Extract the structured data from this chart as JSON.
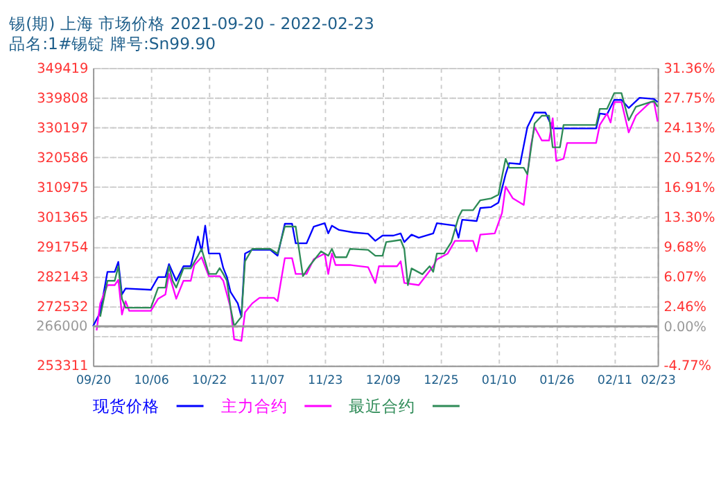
{
  "chart_data": {
    "type": "line",
    "title": "锡(期) 上海 市场价格 2021-09-20 - 2022-02-23",
    "subtitle": "品名:1#锡锭 牌号:Sn99.90",
    "xlim": [
      "2021-09-20",
      "2022-02-23"
    ],
    "xticks": [
      {
        "value": "2021-09-20",
        "label": "09/20"
      },
      {
        "value": "2021-10-06",
        "label": "10/06"
      },
      {
        "value": "2021-10-22",
        "label": "10/22"
      },
      {
        "value": "2021-11-07",
        "label": "11/07"
      },
      {
        "value": "2021-11-23",
        "label": "11/23"
      },
      {
        "value": "2021-12-09",
        "label": "12/09"
      },
      {
        "value": "2021-12-25",
        "label": "12/25"
      },
      {
        "value": "2022-01-10",
        "label": "01/10"
      },
      {
        "value": "2022-01-26",
        "label": "01/26"
      },
      {
        "value": "2022-02-11",
        "label": "02/11"
      },
      {
        "value": "2022-02-23",
        "label": "02/23"
      }
    ],
    "ylim": [
      253311,
      349419
    ],
    "yticks": [
      253311,
      {
        "value": 262922,
        "label": null
      },
      272532,
      282143,
      291754,
      301365,
      310975,
      320586,
      330197,
      339808,
      349419
    ],
    "y2lim": [
      -4.77,
      31.36
    ],
    "y2ticks": [
      {
        "value": -4.77,
        "label": "-4.77%"
      },
      {
        "value": -1.15,
        "label": null
      },
      {
        "value": 0,
        "label": "0.00%"
      },
      {
        "value": 2.46,
        "label": "2.46%"
      },
      {
        "value": 6.07,
        "label": "6.07%"
      },
      {
        "value": 9.68,
        "label": "9.68%"
      },
      {
        "value": 13.3,
        "label": "13.30%"
      },
      {
        "value": 16.91,
        "label": "16.91%"
      },
      {
        "value": 20.52,
        "label": "20.52%"
      },
      {
        "value": 24.13,
        "label": "24.13%"
      },
      {
        "value": 27.75,
        "label": "27.75%"
      },
      {
        "value": 31.36,
        "label": "31.36%"
      }
    ],
    "ref_lines": [
      {
        "axis": "y",
        "value": 266000,
        "label": "266000",
        "color": "#999999"
      }
    ],
    "grid": true,
    "legend": "bottom",
    "marker": "none",
    "line_style": "solid",
    "series": [
      {
        "name": "现货价格",
        "color": "#0000ff",
        "x": [
          "2021-09-20",
          "2021-09-22",
          "2021-09-24",
          "2021-09-26",
          "2021-09-27",
          "2021-09-28",
          "2021-09-29",
          "2021-10-06",
          "2021-10-08",
          "2021-10-10",
          "2021-10-11",
          "2021-10-13",
          "2021-10-15",
          "2021-10-17",
          "2021-10-19",
          "2021-10-20",
          "2021-10-21",
          "2021-10-22",
          "2021-10-25",
          "2021-10-26",
          "2021-10-27",
          "2021-10-28",
          "2021-10-30",
          "2021-10-31",
          "2021-11-01",
          "2021-11-03",
          "2021-11-08",
          "2021-11-10",
          "2021-11-12",
          "2021-11-14",
          "2021-11-15",
          "2021-11-18",
          "2021-11-20",
          "2021-11-23",
          "2021-11-24",
          "2021-11-25",
          "2021-11-27",
          "2021-12-01",
          "2021-12-05",
          "2021-12-07",
          "2021-12-09",
          "2021-12-12",
          "2021-12-14",
          "2021-12-15",
          "2021-12-17",
          "2021-12-19",
          "2021-12-23",
          "2021-12-24",
          "2021-12-29",
          "2021-12-30",
          "2021-12-31",
          "2022-01-04",
          "2022-01-05",
          "2022-01-08",
          "2022-01-10",
          "2022-01-12",
          "2022-01-13",
          "2022-01-16",
          "2022-01-18",
          "2022-01-20",
          "2022-01-23",
          "2022-01-25",
          "2022-02-06",
          "2022-02-07",
          "2022-02-09",
          "2022-02-11",
          "2022-02-13",
          "2022-02-15",
          "2022-02-18",
          "2022-02-22",
          "2022-02-23"
        ],
        "values": [
          266000,
          270500,
          283600,
          283600,
          286800,
          276300,
          278200,
          277800,
          281900,
          281900,
          286100,
          280700,
          285400,
          285400,
          295000,
          290200,
          298500,
          289500,
          289500,
          284800,
          281900,
          277100,
          273400,
          269100,
          289500,
          290700,
          290700,
          288800,
          299100,
          299100,
          292800,
          292800,
          298200,
          299300,
          296000,
          298500,
          297100,
          296300,
          295900,
          293600,
          295300,
          295300,
          296000,
          293200,
          295600,
          294600,
          296000,
          299300,
          298500,
          294600,
          300400,
          300000,
          304200,
          304500,
          305900,
          315100,
          318700,
          318400,
          330300,
          335000,
          335000,
          329900,
          329900,
          334700,
          334400,
          339100,
          339100,
          336500,
          339800,
          339400,
          338400
        ]
      },
      {
        "name": "主力合约",
        "color": "#ff00ff",
        "x": [
          "2021-09-21",
          "2021-09-22",
          "2021-09-24",
          "2021-09-26",
          "2021-09-27",
          "2021-09-28",
          "2021-09-29",
          "2021-09-30",
          "2021-10-06",
          "2021-10-08",
          "2021-10-10",
          "2021-10-11",
          "2021-10-13",
          "2021-10-15",
          "2021-10-17",
          "2021-10-18",
          "2021-10-20",
          "2021-10-22",
          "2021-10-25",
          "2021-10-26",
          "2021-10-28",
          "2021-10-29",
          "2021-10-31",
          "2021-11-01",
          "2021-11-03",
          "2021-11-05",
          "2021-11-09",
          "2021-11-10",
          "2021-11-12",
          "2021-11-14",
          "2021-11-15",
          "2021-11-18",
          "2021-11-20",
          "2021-11-23",
          "2021-11-24",
          "2021-11-25",
          "2021-11-26",
          "2021-11-30",
          "2021-12-05",
          "2021-12-07",
          "2021-12-08",
          "2021-12-13",
          "2021-12-14",
          "2021-12-15",
          "2021-12-19",
          "2021-12-23",
          "2021-12-24",
          "2021-12-27",
          "2021-12-29",
          "2022-01-03",
          "2022-01-04",
          "2022-01-05",
          "2022-01-09",
          "2022-01-11",
          "2022-01-12",
          "2022-01-14",
          "2022-01-17",
          "2022-01-19",
          "2022-01-20",
          "2022-01-22",
          "2022-01-24",
          "2022-01-25",
          "2022-01-26",
          "2022-01-28",
          "2022-01-29",
          "2022-02-06",
          "2022-02-07",
          "2022-02-09",
          "2022-02-10",
          "2022-02-11",
          "2022-02-13",
          "2022-02-15",
          "2022-02-17",
          "2022-02-21",
          "2022-02-22",
          "2022-02-23"
        ],
        "values": [
          264700,
          273400,
          279300,
          279300,
          281000,
          269800,
          274100,
          271000,
          271000,
          274900,
          276300,
          282900,
          274900,
          280700,
          280700,
          285800,
          288300,
          282200,
          282200,
          280700,
          272000,
          261800,
          261300,
          270500,
          273400,
          275200,
          275200,
          274100,
          288000,
          288000,
          282900,
          282900,
          287700,
          289500,
          282900,
          289500,
          285800,
          285800,
          285100,
          280000,
          285400,
          285400,
          287000,
          280000,
          279300,
          285400,
          287600,
          289500,
          293600,
          293600,
          290200,
          295600,
          296000,
          302600,
          311100,
          307300,
          305200,
          324500,
          330300,
          326000,
          326000,
          333200,
          319400,
          320100,
          325200,
          325200,
          331000,
          334700,
          331800,
          338400,
          338400,
          328600,
          334000,
          338400,
          338400,
          332100
        ]
      },
      {
        "name": "最近合约",
        "color": "#2e8b57",
        "x": [
          "2021-09-22",
          "2021-09-24",
          "2021-09-26",
          "2021-09-27",
          "2021-09-28",
          "2021-09-29",
          "2021-10-06",
          "2021-10-08",
          "2021-10-10",
          "2021-10-11",
          "2021-10-12",
          "2021-10-13",
          "2021-10-15",
          "2021-10-17",
          "2021-10-19",
          "2021-10-20",
          "2021-10-22",
          "2021-10-24",
          "2021-10-25",
          "2021-10-26",
          "2021-10-27",
          "2021-10-28",
          "2021-10-29",
          "2021-10-31",
          "2021-11-01",
          "2021-11-03",
          "2021-11-08",
          "2021-11-10",
          "2021-11-12",
          "2021-11-15",
          "2021-11-17",
          "2021-11-19",
          "2021-11-22",
          "2021-11-24",
          "2021-11-25",
          "2021-11-26",
          "2021-11-29",
          "2021-11-30",
          "2021-12-05",
          "2021-12-07",
          "2021-12-09",
          "2021-12-10",
          "2021-12-14",
          "2021-12-15",
          "2021-12-16",
          "2021-12-17",
          "2021-12-20",
          "2021-12-22",
          "2021-12-23",
          "2021-12-24",
          "2021-12-26",
          "2021-12-28",
          "2021-12-30",
          "2021-12-31",
          "2022-01-03",
          "2022-01-05",
          "2022-01-08",
          "2022-01-10",
          "2022-01-12",
          "2022-01-13",
          "2022-01-17",
          "2022-01-18",
          "2022-01-20",
          "2022-01-22",
          "2022-01-24",
          "2022-01-25",
          "2022-01-27",
          "2022-01-28",
          "2022-02-06",
          "2022-02-07",
          "2022-02-09",
          "2022-02-11",
          "2022-02-13",
          "2022-02-15",
          "2022-02-17",
          "2022-02-22",
          "2022-02-23"
        ],
        "values": [
          269100,
          280700,
          280700,
          285400,
          274900,
          272000,
          272000,
          278500,
          278500,
          285400,
          280700,
          278500,
          284700,
          284700,
          288800,
          291000,
          282900,
          282900,
          284800,
          282900,
          280700,
          272000,
          266100,
          269100,
          287000,
          291000,
          291000,
          289500,
          298200,
          298200,
          282200,
          285800,
          290200,
          288800,
          291000,
          288300,
          288300,
          291000,
          290700,
          288800,
          288800,
          293200,
          293900,
          291000,
          279300,
          284700,
          282800,
          285400,
          283600,
          289500,
          289500,
          293200,
          301300,
          303500,
          303500,
          306700,
          307300,
          308500,
          320100,
          317200,
          317200,
          315100,
          331500,
          334000,
          334000,
          323800,
          323800,
          331000,
          331000,
          336200,
          336200,
          341300,
          341300,
          332500,
          336900,
          338800,
          336900
        ]
      }
    ]
  }
}
